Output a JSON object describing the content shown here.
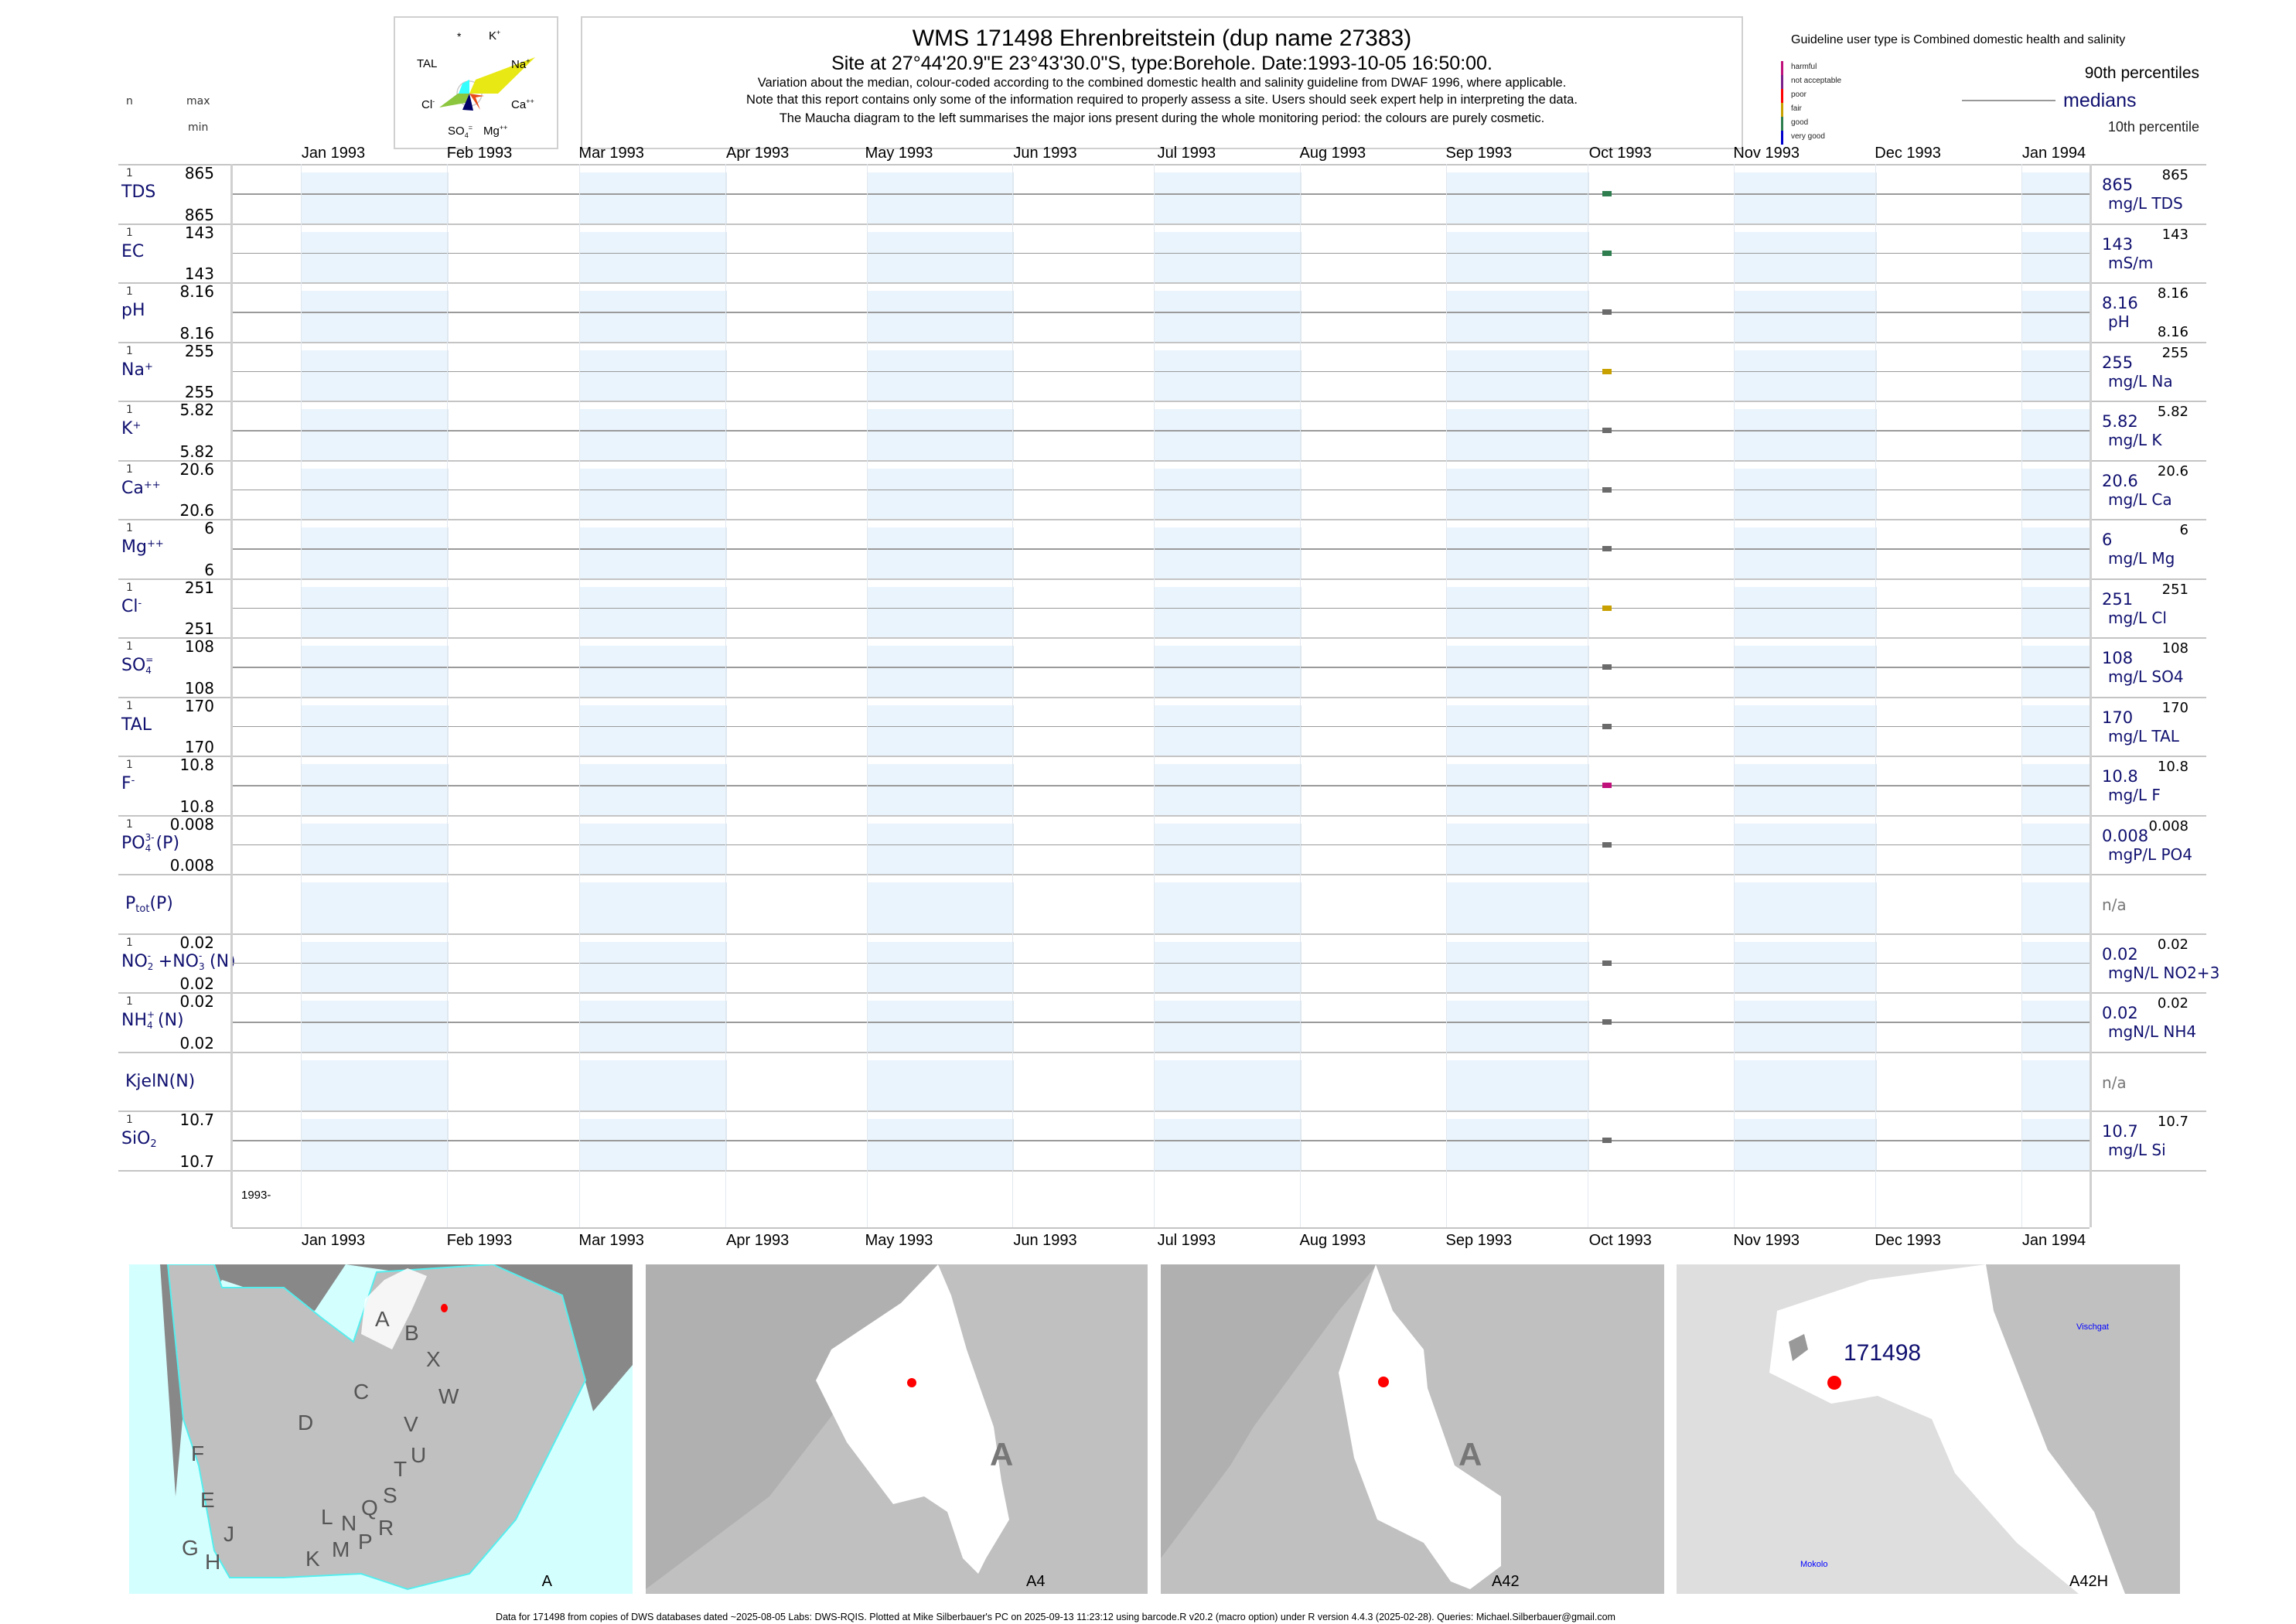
{
  "header": {
    "title": "WMS 171498  Ehrenbreitstein (dup name 27383)",
    "site": "Site at 27°44'20.9\"E 23°43'30.0\"S, type:Borehole. Date:1993-10-05 16:50:00.",
    "note1": "Variation about the median,  colour-coded according to the combined domestic health and salinity guideline from DWAF 1996, where applicable.",
    "note2": "Note that this report contains only some of the information required to properly assess a site. Users should seek expert help in interpreting the data.",
    "note3": "The Maucha diagram to the left summarises the major ions present during the whole monitoring period: the colours are purely cosmetic."
  },
  "column_headers": {
    "n": "n",
    "max": "max",
    "min": "min"
  },
  "maucha": {
    "labels": {
      "star": "*",
      "k": "K",
      "k_sup": "+",
      "tal": "TAL",
      "na": "Na",
      "na_sup": "+",
      "cl": "Cl",
      "cl_sup": "-",
      "ca": "Ca",
      "ca_sup": "++",
      "so4": "SO",
      "so4_sub": "4",
      "so4_sup": "=",
      "mg": "Mg",
      "mg_sup": "++"
    },
    "colors": {
      "na": "#e8e814",
      "cl": "#8cc63f",
      "tal": "#33ffff",
      "so4": "#000066",
      "ca": "#e84a1a"
    }
  },
  "legend": {
    "guideline": "Guideline user type is Combined domestic health and salinity",
    "classes": [
      {
        "label": "harmful",
        "color": "#c0107a"
      },
      {
        "label": "not acceptable",
        "color": "#7b1f8a"
      },
      {
        "label": "poor",
        "color": "#ff0000"
      },
      {
        "label": "fair",
        "color": "#c8a000"
      },
      {
        "label": "good",
        "color": "#2e7d4f"
      },
      {
        "label": "very good",
        "color": "#0000cc"
      }
    ],
    "p90": "90th percentiles",
    "medians": "medians",
    "p10": "10th percentile"
  },
  "chart_data": {
    "type": "scatter",
    "x_axis": {
      "type": "date",
      "range": [
        "1992-12-17",
        "1994-01-15"
      ],
      "tick_labels": [
        "Jan 1993",
        "Feb 1993",
        "Mar 1993",
        "Apr 1993",
        "May 1993",
        "Jun 1993",
        "Jul 1993",
        "Aug 1993",
        "Sep 1993",
        "Oct 1993",
        "Nov 1993",
        "Dec 1993",
        "Jan 1994"
      ],
      "tick_dates": [
        "1993-01-01",
        "1993-02-01",
        "1993-03-01",
        "1993-04-01",
        "1993-05-01",
        "1993-06-01",
        "1993-07-01",
        "1993-08-01",
        "1993-09-01",
        "1993-10-01",
        "1993-11-01",
        "1993-12-01",
        "1994-01-01"
      ],
      "year_label": "1993-"
    },
    "shaded_months": [
      "1993-01",
      "1993-03",
      "1993-05",
      "1993-07",
      "1993-09",
      "1993-11",
      "1994-01"
    ],
    "series": [
      {
        "name": "TDS",
        "label": [
          {
            "t": "TDS"
          }
        ],
        "n": "1",
        "max": "865",
        "min": "865",
        "median": "865",
        "unit": "mg/L TDS",
        "p90": "865",
        "x": [
          "1993-10-05"
        ],
        "y": [
          865
        ],
        "color": "#2e7d4f"
      },
      {
        "name": "EC",
        "label": [
          {
            "t": "EC"
          }
        ],
        "n": "1",
        "max": "143",
        "min": "143",
        "median": "143",
        "unit": "mS/m",
        "p90": "143",
        "x": [
          "1993-10-05"
        ],
        "y": [
          143
        ],
        "color": "#2e7d4f"
      },
      {
        "name": "pH",
        "label": [
          {
            "t": "pH"
          }
        ],
        "n": "1",
        "max": "8.16",
        "min": "8.16",
        "median": "8.16",
        "unit": "pH",
        "p90": "8.16",
        "p10": "8.16",
        "x": [
          "1993-10-05"
        ],
        "y": [
          8.16
        ],
        "color": "#6b6b6b"
      },
      {
        "name": "Na+",
        "label": [
          {
            "t": "Na"
          },
          {
            "sup": "+"
          }
        ],
        "n": "1",
        "max": "255",
        "min": "255",
        "median": "255",
        "unit": "mg/L Na",
        "p90": "255",
        "x": [
          "1993-10-05"
        ],
        "y": [
          255
        ],
        "color": "#c8a000"
      },
      {
        "name": "K+",
        "label": [
          {
            "t": "K"
          },
          {
            "sup": "+"
          }
        ],
        "n": "1",
        "max": "5.82",
        "min": "5.82",
        "median": "5.82",
        "unit": "mg/L K",
        "p90": "5.82",
        "x": [
          "1993-10-05"
        ],
        "y": [
          5.82
        ],
        "color": "#6b6b6b"
      },
      {
        "name": "Ca++",
        "label": [
          {
            "t": "Ca"
          },
          {
            "sup": "++"
          }
        ],
        "n": "1",
        "max": "20.6",
        "min": "20.6",
        "median": "20.6",
        "unit": "mg/L Ca",
        "p90": "20.6",
        "x": [
          "1993-10-05"
        ],
        "y": [
          20.6
        ],
        "color": "#6b6b6b"
      },
      {
        "name": "Mg++",
        "label": [
          {
            "t": "Mg"
          },
          {
            "sup": "++"
          }
        ],
        "n": "1",
        "max": "6",
        "min": "6",
        "median": "6",
        "unit": "mg/L Mg",
        "p90": "6",
        "x": [
          "1993-10-05"
        ],
        "y": [
          6
        ],
        "color": "#6b6b6b"
      },
      {
        "name": "Cl-",
        "label": [
          {
            "t": "Cl"
          },
          {
            "sup": "-"
          }
        ],
        "n": "1",
        "max": "251",
        "min": "251",
        "median": "251",
        "unit": "mg/L Cl",
        "p90": "251",
        "x": [
          "1993-10-05"
        ],
        "y": [
          251
        ],
        "color": "#c8a000"
      },
      {
        "name": "SO4=",
        "label": [
          {
            "t": "SO"
          },
          {
            "sub": "4",
            "sup": "="
          }
        ],
        "n": "1",
        "max": "108",
        "min": "108",
        "median": "108",
        "unit": "mg/L SO4",
        "p90": "108",
        "x": [
          "1993-10-05"
        ],
        "y": [
          108
        ],
        "color": "#6b6b6b"
      },
      {
        "name": "TAL",
        "label": [
          {
            "t": "TAL"
          }
        ],
        "n": "1",
        "max": "170",
        "min": "170",
        "median": "170",
        "unit": "mg/L TAL",
        "p90": "170",
        "x": [
          "1993-10-05"
        ],
        "y": [
          170
        ],
        "color": "#6b6b6b"
      },
      {
        "name": "F-",
        "label": [
          {
            "t": "F"
          },
          {
            "sup": "-"
          }
        ],
        "n": "1",
        "max": "10.8",
        "min": "10.8",
        "median": "10.8",
        "unit": "mg/L F",
        "p90": "10.8",
        "x": [
          "1993-10-05"
        ],
        "y": [
          10.8
        ],
        "color": "#c0107a"
      },
      {
        "name": "PO4(P)",
        "label": [
          {
            "t": "PO"
          },
          {
            "sub": "4",
            "sup": "3-"
          },
          {
            "t": "(P)"
          }
        ],
        "n": "1",
        "max": "0.008",
        "min": "0.008",
        "median": "0.008",
        "unit": "mgP/L PO4",
        "p90": "0.008",
        "x": [
          "1993-10-05"
        ],
        "y": [
          0.008
        ],
        "color": "#6b6b6b"
      },
      {
        "name": "Ptot(P)",
        "label": [
          {
            "t": "P"
          },
          {
            "sub": "tot"
          },
          {
            "t": "(P)"
          }
        ],
        "na": "n/a",
        "x": [],
        "y": []
      },
      {
        "name": "NO2+NO3(N)",
        "label": [
          {
            "t": "NO"
          },
          {
            "sub": "2",
            "sup": "-"
          },
          {
            "t": "+NO"
          },
          {
            "sub": "3",
            "sup": "-"
          },
          {
            "t": "(N)"
          }
        ],
        "n": "1",
        "max": "0.02",
        "min": "0.02",
        "median": "0.02",
        "unit": "mgN/L NO2+3",
        "p90": "0.02",
        "x": [
          "1993-10-05"
        ],
        "y": [
          0.02
        ],
        "color": "#6b6b6b"
      },
      {
        "name": "NH4(N)",
        "label": [
          {
            "t": "NH"
          },
          {
            "sub": "4",
            "sup": "+"
          },
          {
            "t": "(N)"
          }
        ],
        "n": "1",
        "max": "0.02",
        "min": "0.02",
        "median": "0.02",
        "unit": "mgN/L NH4",
        "p90": "0.02",
        "x": [
          "1993-10-05"
        ],
        "y": [
          0.02
        ],
        "color": "#6b6b6b"
      },
      {
        "name": "KjelN(N)",
        "label": [
          {
            "t": "KjelN(N)"
          }
        ],
        "na": "n/a",
        "x": [],
        "y": []
      },
      {
        "name": "SiO2",
        "label": [
          {
            "t": "SiO"
          },
          {
            "sub": "2"
          }
        ],
        "n": "1",
        "max": "10.7",
        "min": "10.7",
        "median": "10.7",
        "unit": "mg/L Si",
        "p90": "10.7",
        "x": [
          "1993-10-05"
        ],
        "y": [
          10.7
        ],
        "color": "#6b6b6b"
      }
    ]
  },
  "maps": {
    "panels": [
      {
        "label": "A",
        "region_letters": [
          "A",
          "B",
          "X",
          "W",
          "C",
          "D",
          "V",
          "U",
          "F",
          "T",
          "E",
          "S",
          "Q",
          "N",
          "L",
          "R",
          "G",
          "J",
          "P",
          "M",
          "H",
          "K"
        ]
      },
      {
        "label": "A4",
        "big_letter": "A"
      },
      {
        "label": "A42",
        "big_letter": "A"
      },
      {
        "label": "A42H",
        "site_label": "171498",
        "places": [
          "Vischgat",
          "Mokolo"
        ]
      }
    ],
    "colors": {
      "sea": "#d4ffff",
      "land": "#c0c0c0",
      "dark": "#888888",
      "catchment": "#ffffff",
      "site": "#ff0000"
    }
  },
  "footer": "Data for 171498 from copies of DWS databases dated ~2025-08-05 Labs: DWS-RQIS. Plotted at Mike Silberbauer's PC on 2025-09-13 11:23:12 using barcode.R v20.2 (macro option) under R version 4.4.3 (2025-02-28). Queries: Michael.Silberbauer@gmail.com"
}
